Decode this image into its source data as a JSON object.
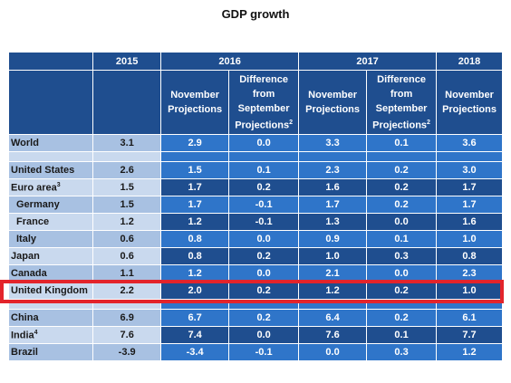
{
  "title": "GDP growth",
  "years": [
    "2015",
    "2016",
    "2017",
    "2018"
  ],
  "subheaders": {
    "nov": [
      "November",
      "Projections"
    ],
    "diff": [
      "Difference from",
      "September",
      "Projections"
    ],
    "note": "2"
  },
  "rows": [
    {
      "name": "World",
      "note": "",
      "indent": false,
      "v2015": "3.1",
      "nov16": "2.9",
      "diff16": "0.0",
      "nov17": "3.3",
      "diff17": "0.1",
      "nov18": "3.6"
    },
    {
      "name": "United States",
      "note": "",
      "indent": false,
      "v2015": "2.6",
      "nov16": "1.5",
      "diff16": "0.1",
      "nov17": "2.3",
      "diff17": "0.2",
      "nov18": "3.0"
    },
    {
      "name": "Euro area",
      "note": "3",
      "indent": false,
      "v2015": "1.5",
      "nov16": "1.7",
      "diff16": "0.2",
      "nov17": "1.6",
      "diff17": "0.2",
      "nov18": "1.7"
    },
    {
      "name": "Germany",
      "note": "",
      "indent": true,
      "v2015": "1.5",
      "nov16": "1.7",
      "diff16": "-0.1",
      "nov17": "1.7",
      "diff17": "0.2",
      "nov18": "1.7"
    },
    {
      "name": "France",
      "note": "",
      "indent": true,
      "v2015": "1.2",
      "nov16": "1.2",
      "diff16": "-0.1",
      "nov17": "1.3",
      "diff17": "0.0",
      "nov18": "1.6"
    },
    {
      "name": "Italy",
      "note": "",
      "indent": true,
      "v2015": "0.6",
      "nov16": "0.8",
      "diff16": "0.0",
      "nov17": "0.9",
      "diff17": "0.1",
      "nov18": "1.0"
    },
    {
      "name": "Japan",
      "note": "",
      "indent": false,
      "v2015": "0.6",
      "nov16": "0.8",
      "diff16": "0.2",
      "nov17": "1.0",
      "diff17": "0.3",
      "nov18": "0.8"
    },
    {
      "name": "Canada",
      "note": "",
      "indent": false,
      "v2015": "1.1",
      "nov16": "1.2",
      "diff16": "0.0",
      "nov17": "2.1",
      "diff17": "0.0",
      "nov18": "2.3"
    },
    {
      "name": "United Kingdom",
      "note": "",
      "indent": false,
      "v2015": "2.2",
      "nov16": "2.0",
      "diff16": "0.2",
      "nov17": "1.2",
      "diff17": "0.2",
      "nov18": "1.0"
    },
    {
      "name": "China",
      "note": "",
      "indent": false,
      "v2015": "6.9",
      "nov16": "6.7",
      "diff16": "0.2",
      "nov17": "6.4",
      "diff17": "0.2",
      "nov18": "6.1"
    },
    {
      "name": "India",
      "note": "4",
      "indent": false,
      "v2015": "7.6",
      "nov16": "7.4",
      "diff16": "0.0",
      "nov17": "7.6",
      "diff17": "0.1",
      "nov18": "7.7"
    },
    {
      "name": "Brazil",
      "note": "",
      "indent": false,
      "v2015": "-3.9",
      "nov16": "-3.4",
      "diff16": "-0.1",
      "nov17": "0.0",
      "diff17": "0.3",
      "nov18": "1.2"
    }
  ],
  "highlighted_row": "United Kingdom",
  "colors": {
    "header": "#1f4e8f",
    "data_light": "#2f75c9",
    "label_bg": "#a8c1e2",
    "highlight": "#e3242b"
  }
}
